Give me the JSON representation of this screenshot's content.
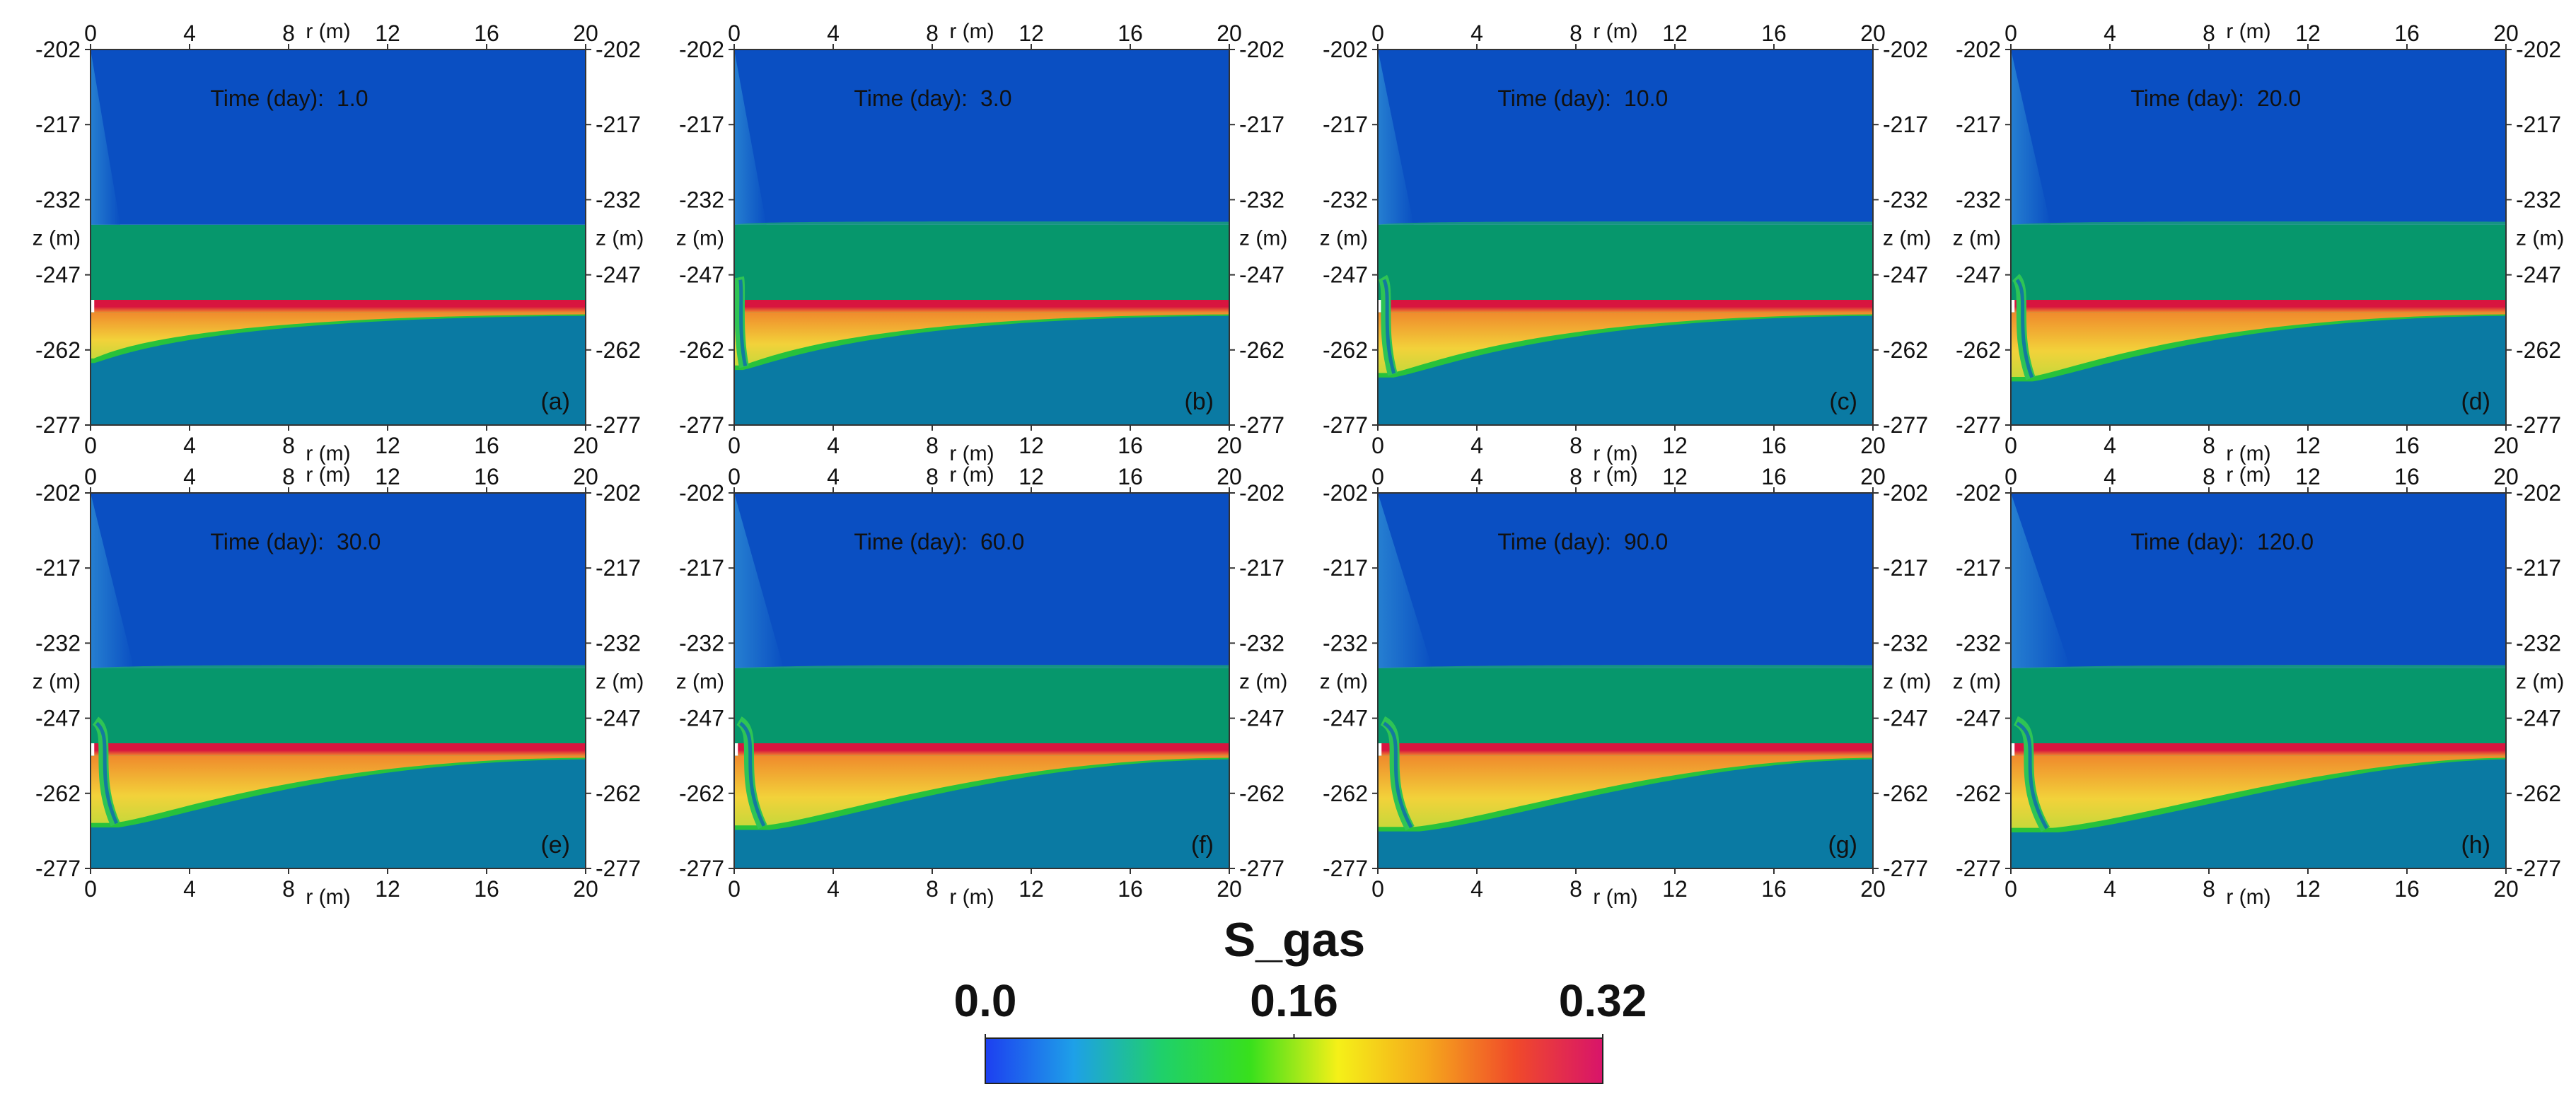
{
  "figure": {
    "panels": [
      {
        "label": "(a)",
        "time_label": "Time (day):",
        "time_value": "1.0",
        "plume": {
          "front_r": 0.4,
          "front_z": -264.6,
          "top_spread": 0.4,
          "column": 0
        }
      },
      {
        "label": "(b)",
        "time_label": "Time (day):",
        "time_value": "3.0",
        "plume": {
          "front_r": 0.9,
          "front_z": -266.0,
          "top_spread": 0.6,
          "column": 0.1
        }
      },
      {
        "label": "(c)",
        "time_label": "Time (day):",
        "time_value": "10.0",
        "plume": {
          "front_r": 1.6,
          "front_z": -267.5,
          "top_spread": 0.9,
          "column": 0.3
        }
      },
      {
        "label": "(d)",
        "time_label": "Time (day):",
        "time_value": "20.0",
        "plume": {
          "front_r": 2.2,
          "front_z": -268.3,
          "top_spread": 1.2,
          "column": 0.5
        }
      },
      {
        "label": "(e)",
        "time_label": "Time (day):",
        "time_value": "30.0",
        "plume": {
          "front_r": 2.8,
          "front_z": -268.8,
          "top_spread": 1.5,
          "column": 0.7
        }
      },
      {
        "label": "(f)",
        "time_label": "Time (day):",
        "time_value": "60.0",
        "plume": {
          "front_r": 3.6,
          "front_z": -269.3,
          "top_spread": 2.0,
          "column": 0.85
        }
      },
      {
        "label": "(g)",
        "time_label": "Time (day):",
        "time_value": "90.0",
        "plume": {
          "front_r": 4.2,
          "front_z": -269.6,
          "top_spread": 2.4,
          "column": 1.0
        }
      },
      {
        "label": "(h)",
        "time_label": "Time (day):",
        "time_value": "120.0",
        "plume": {
          "front_r": 4.8,
          "front_z": -269.8,
          "top_spread": 2.8,
          "column": 1.1
        }
      }
    ],
    "axis": {
      "r_label": "r (m)",
      "z_label": "z (m)",
      "r_ticks": [
        "0",
        "4",
        "8",
        "12",
        "16",
        "20"
      ],
      "r_values": [
        0,
        4,
        8,
        12,
        16,
        20
      ],
      "z_ticks": [
        "-202",
        "-217",
        "-232",
        "-247",
        "-262",
        "-277"
      ],
      "z_values": [
        -202,
        -217,
        -232,
        -247,
        -262,
        -277
      ],
      "r_range": [
        0,
        20
      ],
      "z_range": [
        -277,
        -202
      ]
    },
    "layers": {
      "upper_z": [
        -237,
        -202
      ],
      "middle_z": [
        -252,
        -237
      ],
      "gas_band_z": [
        -254.5,
        -252
      ],
      "lower_z": [
        -277,
        -254.5
      ]
    },
    "colors": {
      "upper": "#0a4fc2",
      "middle": "#06976c",
      "lower": "#0a7aa3",
      "gas_core": "#d8143f",
      "gas_mid": "#f08a2c",
      "gas_edge": "#f2d23a",
      "front": "#27c23c"
    },
    "colorbar": {
      "title": "S_gas",
      "tick_labels": [
        "0.0",
        "0.16",
        "0.32"
      ],
      "tick_values": [
        0.0,
        0.16,
        0.32
      ],
      "stops": [
        "#1d3ff0",
        "#1ea0e8",
        "#1fd06a",
        "#38e01c",
        "#f5f018",
        "#f5a81c",
        "#f04a2a",
        "#d8146a"
      ]
    }
  }
}
